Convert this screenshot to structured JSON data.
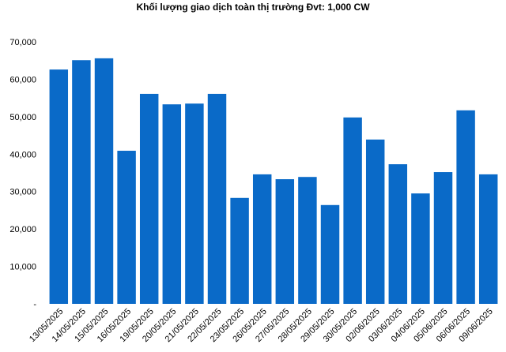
{
  "chart_data": {
    "type": "bar",
    "title": "Khối lượng giao dịch toàn thị trường Đvt: 1,000 CW",
    "categories": [
      "13/05/2025",
      "14/05/2025",
      "15/05/2025",
      "16/05/2025",
      "19/05/2025",
      "20/05/2025",
      "21/05/2025",
      "22/05/2025",
      "23/05/2025",
      "26/05/2025",
      "27/05/2025",
      "28/05/2025",
      "29/05/2025",
      "30/05/2025",
      "02/06/2025",
      "03/06/2025",
      "04/06/2025",
      "05/06/2025",
      "06/06/2025",
      "09/06/2025"
    ],
    "values": [
      62600,
      65100,
      65600,
      40900,
      56100,
      53300,
      53500,
      56100,
      28300,
      34600,
      33300,
      33900,
      26400,
      49800,
      43900,
      37300,
      29500,
      35200,
      51700,
      34600
    ],
    "color": "#0a6ac8",
    "ylim": [
      0,
      70000
    ],
    "yticks": [
      {
        "value": 0,
        "label": "-"
      },
      {
        "value": 10000,
        "label": "10,000"
      },
      {
        "value": 20000,
        "label": "20,000"
      },
      {
        "value": 30000,
        "label": "30,000"
      },
      {
        "value": 40000,
        "label": "40,000"
      },
      {
        "value": 50000,
        "label": "50,000"
      },
      {
        "value": 60000,
        "label": "60,000"
      },
      {
        "value": 70000,
        "label": "70,000"
      }
    ],
    "grid": false
  }
}
